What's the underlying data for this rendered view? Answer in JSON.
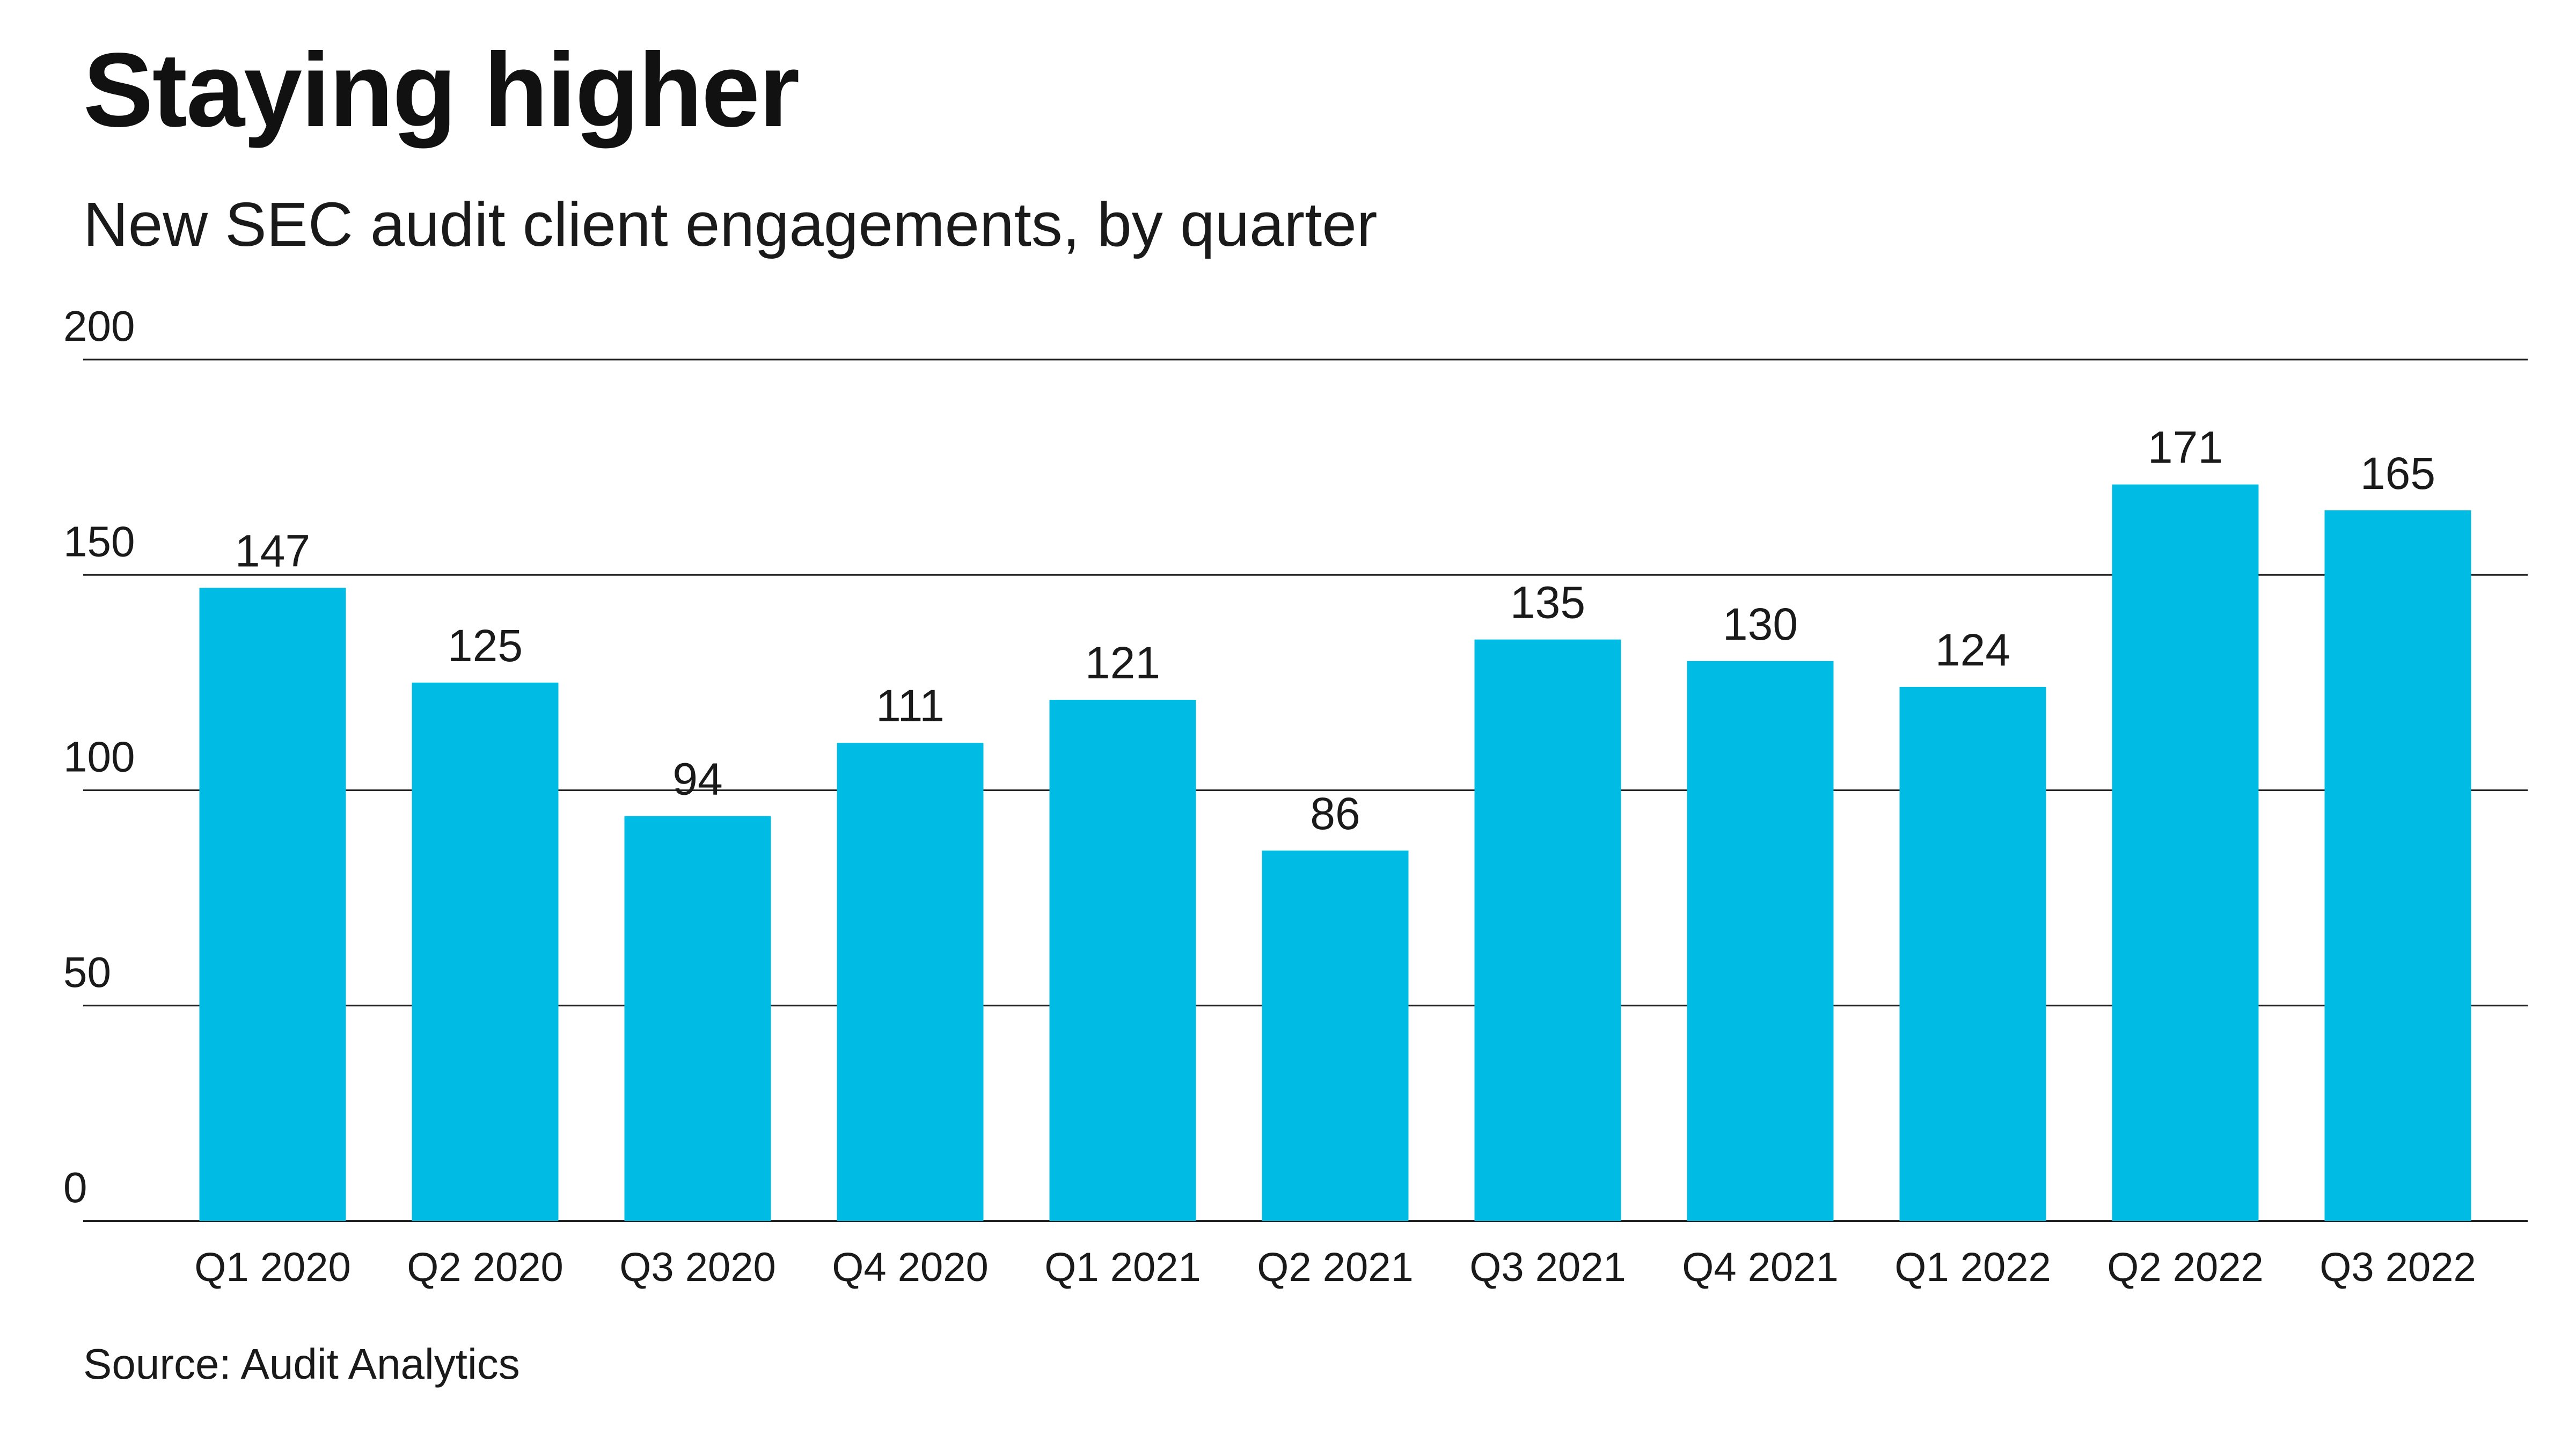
{
  "title": "Staying higher",
  "subtitle": "New SEC audit client engagements, by quarter",
  "source": "Source: Audit Analytics",
  "colors": {
    "bar": "#00bbe4",
    "grid": "#222222"
  },
  "chart_data": {
    "type": "bar",
    "categories": [
      "Q1 2020",
      "Q2 2020",
      "Q3 2020",
      "Q4 2020",
      "Q1 2021",
      "Q2 2021",
      "Q3 2021",
      "Q4 2021",
      "Q1 2022",
      "Q2 2022",
      "Q3 2022"
    ],
    "values": [
      147,
      125,
      94,
      111,
      121,
      86,
      135,
      130,
      124,
      171,
      165
    ],
    "data_labels": [
      "147",
      "125",
      "94",
      "111",
      "121",
      "86",
      "135",
      "130",
      "124",
      "171",
      "165"
    ],
    "y_ticks": [
      0,
      50,
      100,
      150,
      200
    ],
    "y_tick_labels": [
      "0",
      "50",
      "100",
      "150",
      "200"
    ],
    "ylim": [
      0,
      200
    ],
    "grid": true,
    "legend": "none",
    "xlabel": "",
    "ylabel": ""
  }
}
